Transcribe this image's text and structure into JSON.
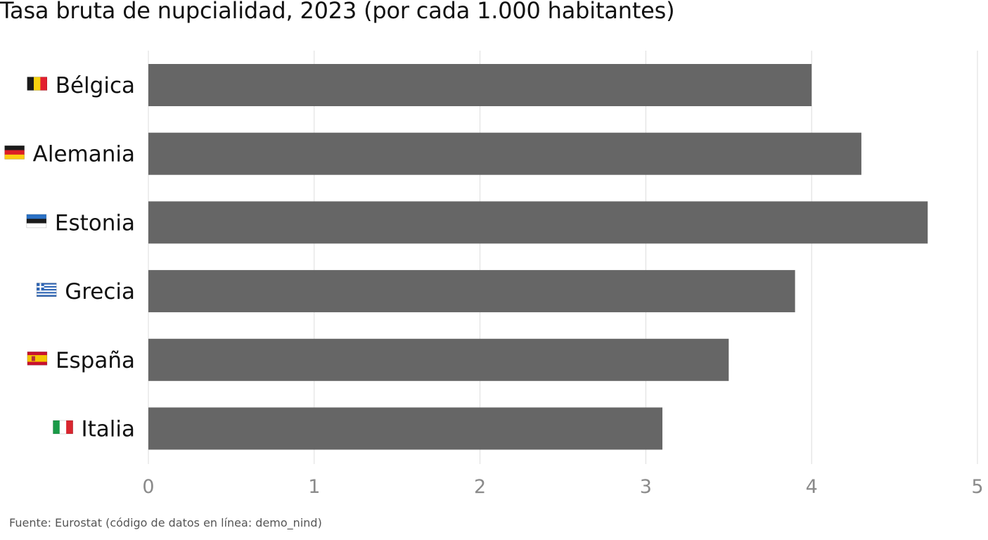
{
  "chart_data": {
    "type": "bar",
    "orientation": "horizontal",
    "title": "Tasa bruta de nupcialidad, 2023 (por cada 1.000 habitantes)",
    "categories": [
      "Bélgica",
      "Alemania",
      "Estonia",
      "Grecia",
      "España",
      "Italia"
    ],
    "flags": [
      "flag-belgium-icon",
      "flag-germany-icon",
      "flag-estonia-icon",
      "flag-greece-icon",
      "flag-spain-icon",
      "flag-italy-icon"
    ],
    "values": [
      4.0,
      4.3,
      4.7,
      3.9,
      3.5,
      3.1
    ],
    "xlim": [
      0,
      5
    ],
    "xticks": [
      "0",
      "1",
      "2",
      "3",
      "4",
      "5"
    ],
    "grid": true,
    "bar_color": "#666666",
    "grid_color": "#dddddd"
  },
  "source": "Fuente: Eurostat (código de datos en línea: demo_nind)"
}
